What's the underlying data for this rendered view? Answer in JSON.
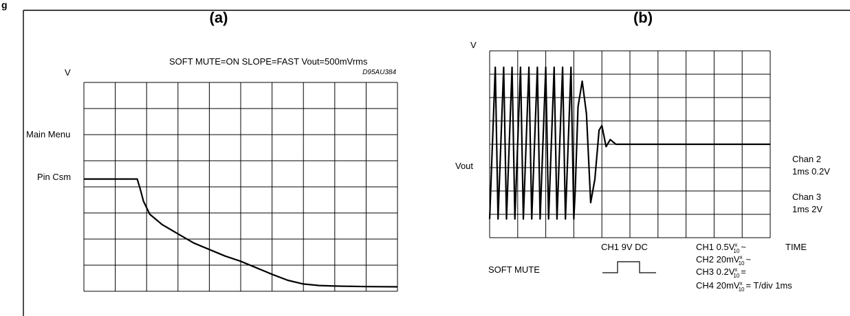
{
  "chart_data": [
    {
      "type": "line",
      "panel_label": "(a)",
      "title": "SOFT MUTE=ON SLOPE=FAST Vout=500mVrms",
      "code": "D95AU384",
      "ylabel": "V",
      "left_labels": [
        "Main Menu",
        "Pin Csm"
      ],
      "grid": true,
      "grid_divisions": {
        "x": 10,
        "y": 8
      },
      "xlim": [
        0,
        10
      ],
      "ylim": [
        0,
        8
      ],
      "series": [
        {
          "x": [
            0,
            1.7,
            1.8,
            1.9,
            2.1,
            2.5,
            3.0,
            3.5,
            4.0,
            4.5,
            5.0,
            5.5,
            6.0,
            6.5,
            7.0,
            7.5,
            8.0,
            9.0,
            10.0
          ],
          "values": [
            4.3,
            4.3,
            3.9,
            3.45,
            2.95,
            2.55,
            2.2,
            1.85,
            1.6,
            1.35,
            1.15,
            0.9,
            0.65,
            0.42,
            0.28,
            0.22,
            0.2,
            0.18,
            0.17
          ]
        }
      ]
    },
    {
      "type": "line",
      "panel_label": "(b)",
      "ylabel": "V",
      "left_label": "Vout",
      "right_labels": [
        "Chan 2",
        "1ms 0.2V",
        "Chan 3",
        "1ms 2V"
      ],
      "grid": true,
      "grid_divisions": {
        "x": 10,
        "y": 8
      },
      "xlim": [
        0,
        10
      ],
      "ylim": [
        -4,
        4
      ],
      "series": [
        {
          "x": [
            0.0,
            0.2,
            0.3,
            0.5,
            0.6,
            0.8,
            0.9,
            1.1,
            1.2,
            1.4,
            1.5,
            1.7,
            1.8,
            2.0,
            2.1,
            2.3,
            2.4,
            2.6,
            2.7,
            2.9,
            3.0,
            3.05,
            3.15,
            3.3,
            3.45,
            3.6,
            3.75,
            3.9,
            4.0,
            4.15,
            4.3,
            4.5,
            10.0
          ],
          "values": [
            -3.2,
            3.3,
            -3.2,
            3.3,
            -3.2,
            3.3,
            -3.2,
            3.3,
            -3.2,
            3.3,
            -3.2,
            3.3,
            -3.2,
            3.3,
            -3.2,
            3.3,
            -3.2,
            3.3,
            -3.2,
            3.3,
            -3.2,
            -2.0,
            1.6,
            2.7,
            1.3,
            -2.5,
            -1.5,
            0.6,
            0.8,
            -0.1,
            0.2,
            0.0,
            0.0
          ]
        }
      ],
      "bottom_labels": {
        "ch1_trigger": "CH1 9V DC",
        "soft_mute": "SOFT MUTE",
        "time": "TIME",
        "channels": [
          "CH1 0.5V",
          "CH2 20mV",
          "CH3 0.2V",
          "CH4 20mV"
        ],
        "channel_suffix": [
          "~",
          "~",
          "=",
          "= T/div 1ms"
        ],
        "probe_top": "x",
        "probe_bottom": "10"
      }
    }
  ]
}
